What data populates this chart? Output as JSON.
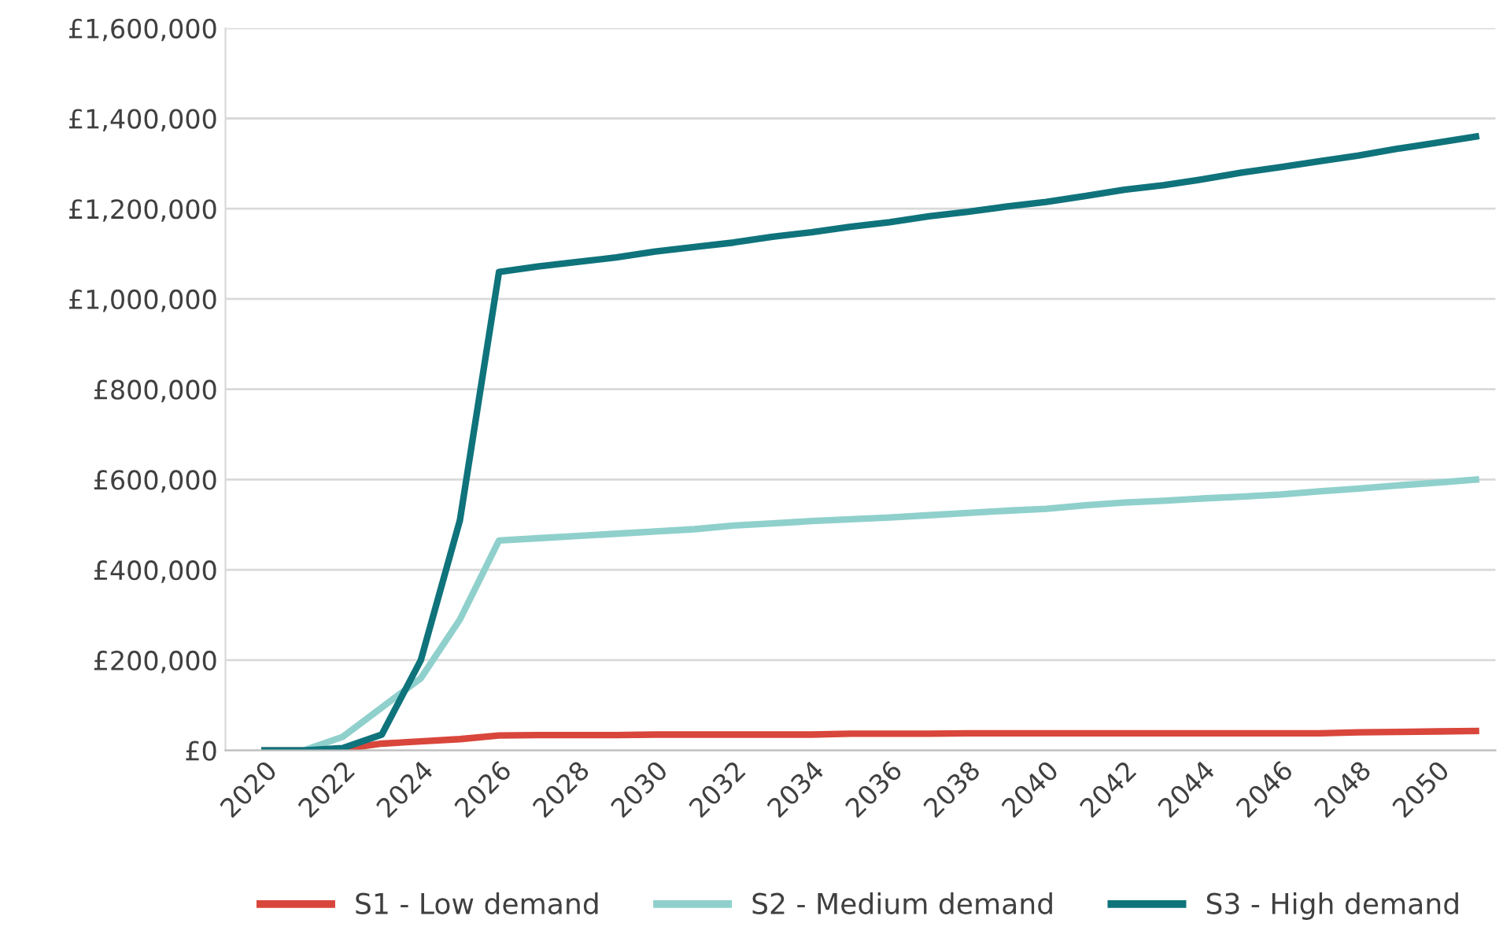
{
  "chart_data": {
    "type": "line",
    "categories": [
      "2020",
      null,
      "2022",
      null,
      "2024",
      null,
      "2026",
      null,
      "2028",
      null,
      "2030",
      null,
      "2032",
      null,
      "2034",
      null,
      "2036",
      null,
      "2038",
      null,
      "2040",
      null,
      "2042",
      null,
      "2044",
      null,
      "2046",
      null,
      "2048",
      null,
      "2050",
      null
    ],
    "series": [
      {
        "name": "S1 - Low demand",
        "color": "#d9463b",
        "values": [
          0,
          0,
          3000,
          15000,
          20000,
          25000,
          33000,
          34000,
          34000,
          34000,
          35000,
          35000,
          35000,
          35000,
          35000,
          37000,
          37000,
          37000,
          38000,
          38000,
          38000,
          38000,
          38000,
          38000,
          38000,
          38000,
          38000,
          38000,
          40000,
          41000,
          42000,
          43000
        ]
      },
      {
        "name": "S2 - Medium demand",
        "color": "#8fd0cc",
        "values": [
          0,
          0,
          30000,
          95000,
          160000,
          290000,
          465000,
          470000,
          475000,
          480000,
          485000,
          490000,
          498000,
          503000,
          508000,
          512000,
          516000,
          521000,
          526000,
          531000,
          535000,
          543000,
          549000,
          553000,
          558000,
          562000,
          567000,
          574000,
          580000,
          587000,
          593000,
          600000
        ]
      },
      {
        "name": "S3 - High demand",
        "color": "#0f737b",
        "values": [
          0,
          0,
          5000,
          35000,
          200000,
          510000,
          1060000,
          1072000,
          1082000,
          1092000,
          1105000,
          1115000,
          1125000,
          1138000,
          1148000,
          1160000,
          1170000,
          1183000,
          1193000,
          1205000,
          1215000,
          1228000,
          1242000,
          1252000,
          1265000,
          1280000,
          1292000,
          1305000,
          1318000,
          1333000,
          1346000,
          1360000
        ]
      }
    ],
    "ylim": [
      0,
      1600000
    ],
    "yticks": [
      {
        "value": 0,
        "label": "£0"
      },
      {
        "value": 200000,
        "label": "£200,000"
      },
      {
        "value": 400000,
        "label": "£400,000"
      },
      {
        "value": 600000,
        "label": "£600,000"
      },
      {
        "value": 800000,
        "label": "£800,000"
      },
      {
        "value": 1000000,
        "label": "£1,000,000"
      },
      {
        "value": 1200000,
        "label": "£1,200,000"
      },
      {
        "value": 1400000,
        "label": "£1,400,000"
      },
      {
        "value": 1600000,
        "label": "£1,600,000"
      }
    ],
    "grid": "y",
    "legend": "bottom",
    "marker": "none",
    "line_style": "solid"
  }
}
